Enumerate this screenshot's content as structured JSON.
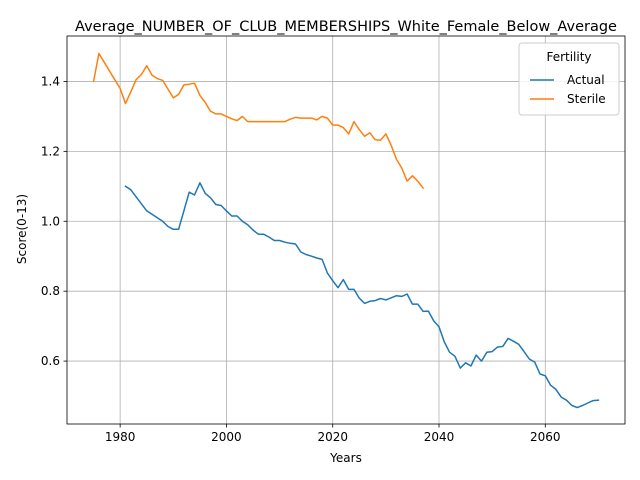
{
  "chart_data": {
    "type": "line",
    "title": "Average_NUMBER_OF_CLUB_MEMBERSHIPS_White_Female_Below_Average",
    "xlabel": "Years",
    "ylabel": "Score(0-13)",
    "xlim": [
      1970,
      2075
    ],
    "ylim": [
      0.42,
      1.53
    ],
    "xticks": [
      1980,
      2000,
      2020,
      2040,
      2060
    ],
    "yticks": [
      0.6,
      0.8,
      1.0,
      1.2,
      1.4
    ],
    "xtick_labels": [
      "1980",
      "2000",
      "2020",
      "2040",
      "2060"
    ],
    "ytick_labels": [
      "0.6",
      "0.8",
      "1.0",
      "1.2",
      "1.4"
    ],
    "grid": true,
    "legend": {
      "title": "Fertility",
      "placement": "top-right"
    },
    "series": [
      {
        "name": "Actual",
        "color": "#1f77b4",
        "x": [
          1981,
          1982,
          1983,
          1984,
          1985,
          1986,
          1987,
          1988,
          1989,
          1990,
          1991,
          1992,
          1993,
          1994,
          1995,
          1996,
          1997,
          1998,
          1999,
          2000,
          2001,
          2002,
          2003,
          2004,
          2005,
          2006,
          2007,
          2008,
          2009,
          2010,
          2011,
          2012,
          2013,
          2014,
          2015,
          2016,
          2017,
          2018,
          2019,
          2020,
          2021,
          2022,
          2023,
          2024,
          2025,
          2026,
          2027,
          2028,
          2029,
          2030,
          2031,
          2032,
          2033,
          2034,
          2035,
          2036,
          2037,
          2038,
          2039,
          2040,
          2041,
          2042,
          2043,
          2044,
          2045,
          2046,
          2047,
          2048,
          2049,
          2050,
          2051,
          2052,
          2053,
          2054,
          2055,
          2056,
          2057,
          2058,
          2059,
          2060,
          2061,
          2062,
          2063,
          2064,
          2065,
          2066,
          2067,
          2068,
          2069,
          2070
        ],
        "y": [
          1.1,
          1.09,
          1.07,
          1.05,
          1.03,
          1.02,
          1.01,
          1.0,
          0.985,
          0.977,
          0.977,
          1.03,
          1.083,
          1.075,
          1.11,
          1.08,
          1.067,
          1.048,
          1.045,
          1.03,
          1.015,
          1.015,
          1.0,
          0.99,
          0.975,
          0.963,
          0.963,
          0.955,
          0.945,
          0.945,
          0.94,
          0.937,
          0.935,
          0.912,
          0.905,
          0.9,
          0.895,
          0.891,
          0.852,
          0.83,
          0.81,
          0.833,
          0.805,
          0.805,
          0.78,
          0.765,
          0.771,
          0.773,
          0.779,
          0.775,
          0.781,
          0.787,
          0.785,
          0.792,
          0.763,
          0.763,
          0.742,
          0.743,
          0.715,
          0.698,
          0.655,
          0.625,
          0.614,
          0.58,
          0.595,
          0.586,
          0.617,
          0.6,
          0.625,
          0.627,
          0.64,
          0.642,
          0.665,
          0.657,
          0.648,
          0.627,
          0.606,
          0.597,
          0.563,
          0.558,
          0.531,
          0.519,
          0.497,
          0.488,
          0.473,
          0.467,
          0.473,
          0.48,
          0.487,
          0.488
        ]
      },
      {
        "name": "Sterile",
        "color": "#ff7f0e",
        "x": [
          1975,
          1976,
          1977,
          1978,
          1979,
          1980,
          1981,
          1982,
          1983,
          1984,
          1985,
          1986,
          1987,
          1988,
          1989,
          1990,
          1991,
          1992,
          1993,
          1994,
          1995,
          1996,
          1997,
          1998,
          1999,
          2000,
          2001,
          2002,
          2003,
          2004,
          2005,
          2006,
          2007,
          2008,
          2009,
          2010,
          2011,
          2012,
          2013,
          2014,
          2015,
          2016,
          2017,
          2018,
          2019,
          2020,
          2021,
          2022,
          2023,
          2024,
          2025,
          2026,
          2027,
          2028,
          2029,
          2030,
          2031,
          2032,
          2033,
          2034,
          2035,
          2036,
          2037
        ],
        "y": [
          1.4,
          1.48,
          1.455,
          1.43,
          1.405,
          1.38,
          1.337,
          1.37,
          1.405,
          1.42,
          1.445,
          1.418,
          1.408,
          1.403,
          1.378,
          1.353,
          1.363,
          1.39,
          1.392,
          1.395,
          1.36,
          1.34,
          1.315,
          1.307,
          1.307,
          1.3,
          1.293,
          1.288,
          1.3,
          1.285,
          1.285,
          1.285,
          1.285,
          1.285,
          1.285,
          1.285,
          1.285,
          1.292,
          1.297,
          1.295,
          1.295,
          1.295,
          1.29,
          1.3,
          1.295,
          1.275,
          1.275,
          1.268,
          1.25,
          1.285,
          1.262,
          1.243,
          1.253,
          1.233,
          1.232,
          1.25,
          1.217,
          1.177,
          1.152,
          1.115,
          1.13,
          1.115,
          1.095
        ]
      }
    ]
  }
}
